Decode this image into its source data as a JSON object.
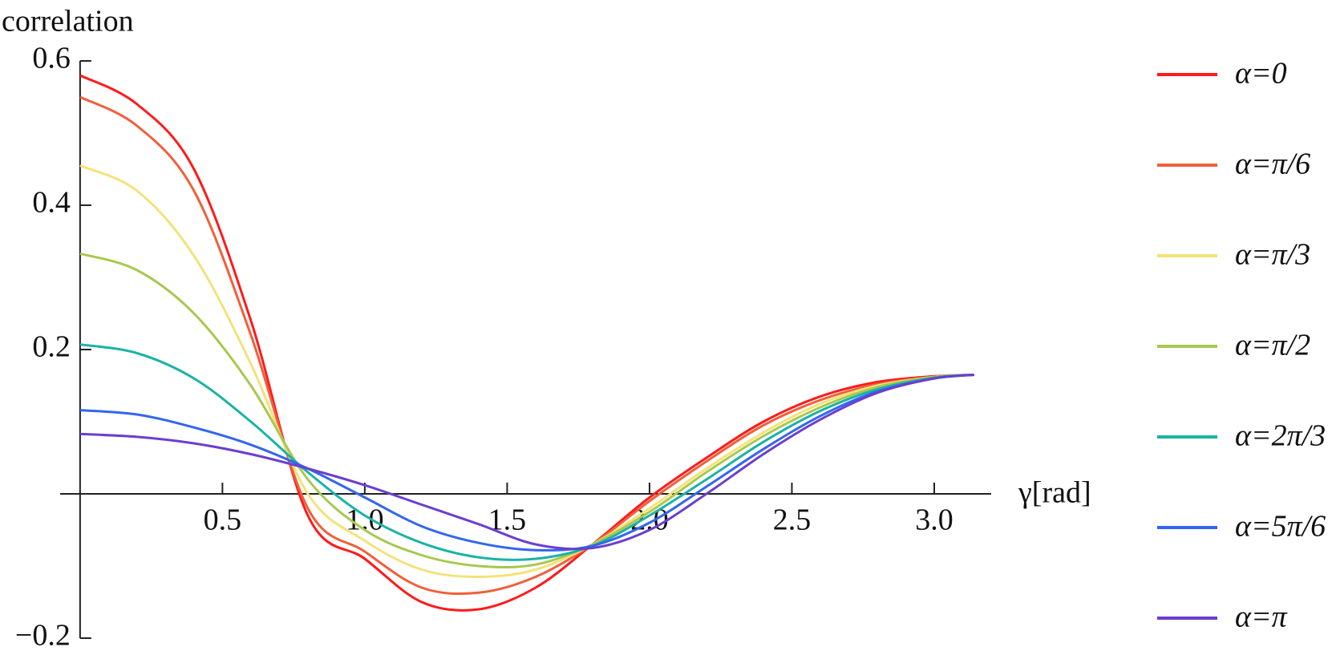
{
  "chart_data": {
    "type": "line",
    "y_label": "correlation",
    "x_label": "γ[rad]",
    "x": [
      0,
      0.2,
      0.4,
      0.6,
      0.8,
      1.0,
      1.2,
      1.4,
      1.6,
      1.8,
      2.0,
      2.2,
      2.4,
      2.6,
      2.8,
      3.0,
      3.14
    ],
    "series": [
      {
        "name": "α=0",
        "color": "#ff1a1a",
        "values": [
          0.58,
          0.54,
          0.45,
          0.24,
          -0.03,
          -0.09,
          -0.15,
          -0.16,
          -0.13,
          -0.07,
          -0.005,
          0.05,
          0.1,
          0.135,
          0.155,
          0.163,
          0.165
        ]
      },
      {
        "name": "α=π/6",
        "color": "#f0603a",
        "values": [
          0.55,
          0.51,
          0.42,
          0.22,
          -0.02,
          -0.08,
          -0.13,
          -0.137,
          -0.115,
          -0.07,
          -0.01,
          0.045,
          0.095,
          0.13,
          0.152,
          0.162,
          0.165
        ]
      },
      {
        "name": "α=π/3",
        "color": "#f3e27a",
        "values": [
          0.455,
          0.42,
          0.33,
          0.18,
          0.0,
          -0.065,
          -0.105,
          -0.115,
          -0.105,
          -0.07,
          -0.02,
          0.035,
          0.085,
          0.125,
          0.15,
          0.162,
          0.165
        ]
      },
      {
        "name": "α=π/2",
        "color": "#a8c84e",
        "values": [
          0.333,
          0.31,
          0.25,
          0.15,
          0.02,
          -0.05,
          -0.085,
          -0.1,
          -0.098,
          -0.07,
          -0.025,
          0.03,
          0.08,
          0.12,
          0.148,
          0.162,
          0.165
        ]
      },
      {
        "name": "α=2π/3",
        "color": "#1ab3a6",
        "values": [
          0.207,
          0.195,
          0.16,
          0.1,
          0.03,
          -0.03,
          -0.068,
          -0.088,
          -0.09,
          -0.072,
          -0.03,
          0.02,
          0.072,
          0.115,
          0.145,
          0.161,
          0.165
        ]
      },
      {
        "name": "α=5π/6",
        "color": "#3366ee",
        "values": [
          0.116,
          0.11,
          0.092,
          0.068,
          0.035,
          -0.005,
          -0.045,
          -0.068,
          -0.078,
          -0.072,
          -0.04,
          0.01,
          0.062,
          0.108,
          0.142,
          0.16,
          0.165
        ]
      },
      {
        "name": "α=π",
        "color": "#6a3fd0",
        "values": [
          0.083,
          0.079,
          0.07,
          0.055,
          0.035,
          0.012,
          -0.015,
          -0.042,
          -0.07,
          -0.075,
          -0.05,
          0.0,
          0.055,
          0.103,
          0.14,
          0.16,
          0.165
        ]
      }
    ],
    "xlim": [
      -0.07,
      3.2
    ],
    "ylim": [
      -0.2,
      0.6
    ],
    "xticks": [
      0.5,
      {
        "value": 1,
        "label": "1.0"
      },
      1.5,
      {
        "value": 2,
        "label": "2.0"
      },
      2.5,
      {
        "value": 3,
        "label": "3.0"
      }
    ],
    "yticks": [
      {
        "value": -0.2,
        "label": "−0.2"
      },
      0.2,
      0.4,
      0.6
    ],
    "legend": "right"
  }
}
